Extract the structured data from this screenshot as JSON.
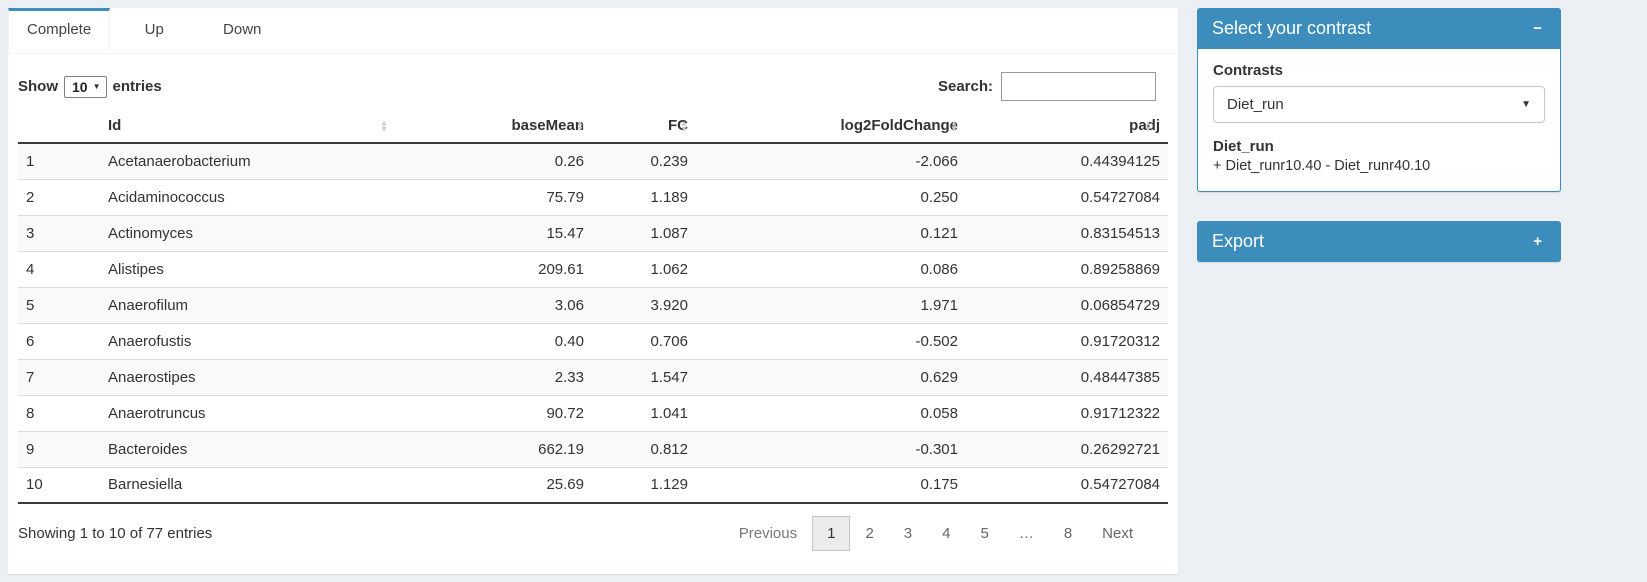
{
  "tabs": {
    "items": [
      {
        "label": "Complete",
        "active": true
      },
      {
        "label": "Up",
        "active": false
      },
      {
        "label": "Down",
        "active": false
      }
    ]
  },
  "controls": {
    "show_label": "Show",
    "page_size": "10",
    "entries_label": "entries",
    "search_label": "Search:",
    "search_value": ""
  },
  "table": {
    "columns": [
      {
        "label": "",
        "align": "left",
        "sortable": false
      },
      {
        "label": "Id",
        "align": "left",
        "sortable": true
      },
      {
        "label": "baseMean",
        "align": "right",
        "sortable": true
      },
      {
        "label": "FC",
        "align": "right",
        "sortable": true
      },
      {
        "label": "log2FoldChange",
        "align": "right",
        "sortable": true
      },
      {
        "label": "padj",
        "align": "right",
        "sortable": true
      }
    ],
    "rows": [
      [
        "1",
        "Acetanaerobacterium",
        "0.26",
        "0.239",
        "-2.066",
        "0.44394125"
      ],
      [
        "2",
        "Acidaminococcus",
        "75.79",
        "1.189",
        "0.250",
        "0.54727084"
      ],
      [
        "3",
        "Actinomyces",
        "15.47",
        "1.087",
        "0.121",
        "0.83154513"
      ],
      [
        "4",
        "Alistipes",
        "209.61",
        "1.062",
        "0.086",
        "0.89258869"
      ],
      [
        "5",
        "Anaerofilum",
        "3.06",
        "3.920",
        "1.971",
        "0.06854729"
      ],
      [
        "6",
        "Anaerofustis",
        "0.40",
        "0.706",
        "-0.502",
        "0.91720312"
      ],
      [
        "7",
        "Anaerostipes",
        "2.33",
        "1.547",
        "0.629",
        "0.48447385"
      ],
      [
        "8",
        "Anaerotruncus",
        "90.72",
        "1.041",
        "0.058",
        "0.91712322"
      ],
      [
        "9",
        "Bacteroides",
        "662.19",
        "0.812",
        "-0.301",
        "0.26292721"
      ],
      [
        "10",
        "Barnesiella",
        "25.69",
        "1.129",
        "0.175",
        "0.54727084"
      ]
    ],
    "info": "Showing 1 to 10 of 77 entries",
    "pagination": {
      "previous": "Previous",
      "pages": [
        "1",
        "2",
        "3",
        "4",
        "5",
        "…",
        "8"
      ],
      "active": "1",
      "ellipsis": "…",
      "next": "Next"
    }
  },
  "contrast_box": {
    "title": "Select your contrast",
    "contrasts_label": "Contrasts",
    "selected_contrast": "Diet_run",
    "contrast_name": "Diet_run",
    "contrast_formula": "+ Diet_runr10.40 - Diet_runr40.10"
  },
  "export_box": {
    "title": "Export"
  },
  "icons": {
    "sort_up": "▲",
    "sort_down": "▼",
    "caret_down": "▼",
    "collapse_minus": "−",
    "expand_plus": "+"
  },
  "colors": {
    "primary": "#3c8dbc",
    "page_bg": "#ecf0f5",
    "stripe": "#f9f9f9"
  }
}
